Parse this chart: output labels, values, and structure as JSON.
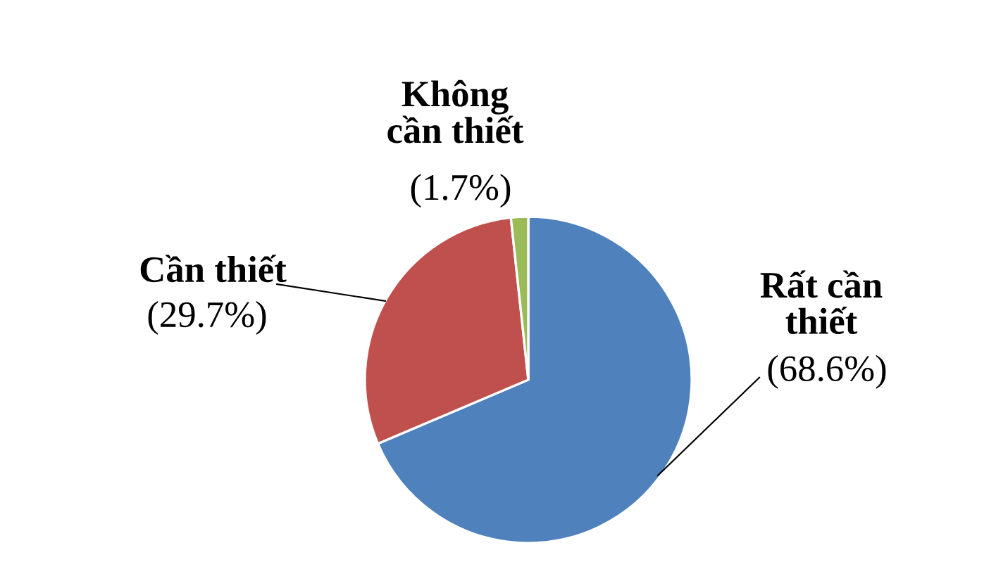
{
  "chart_data": {
    "type": "pie",
    "categories": [
      "Rất cần\nthiết",
      "Cần thiết",
      "Không\ncần thiết"
    ],
    "values": [
      68.6,
      29.7,
      1.7
    ],
    "colors": [
      "#4f81bd",
      "#c0504d",
      "#9bbb59"
    ],
    "value_labels": [
      "(68.6%)",
      "(29.7%)",
      "(1.7%)"
    ]
  }
}
